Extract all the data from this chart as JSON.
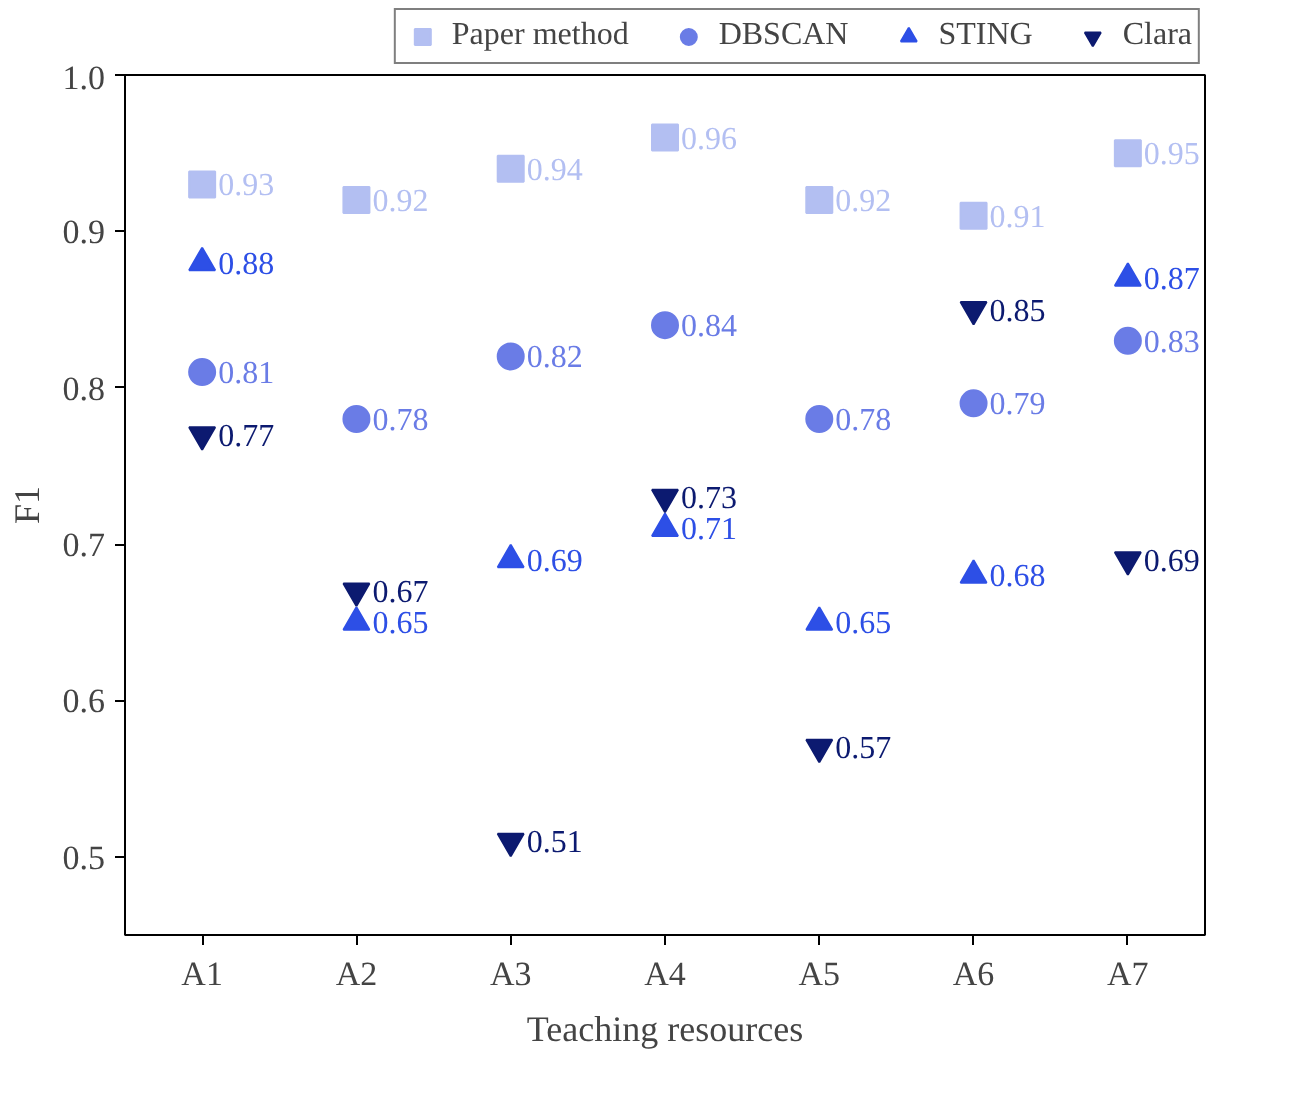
{
  "chart_data": {
    "type": "scatter",
    "xlabel": "Teaching resources",
    "ylabel": "F1",
    "categories": [
      "A1",
      "A2",
      "A3",
      "A4",
      "A5",
      "A6",
      "A7"
    ],
    "ylim": [
      0.45,
      1.0
    ],
    "yticks": [
      0.5,
      0.6,
      0.7,
      0.8,
      0.9,
      {
        "value": 1.0,
        "label": "1.0"
      }
    ],
    "series": [
      {
        "name": "Paper method",
        "color": "#b3bff2",
        "marker": "square",
        "values": [
          0.93,
          0.92,
          0.94,
          0.96,
          0.92,
          0.91,
          0.95
        ]
      },
      {
        "name": "DBSCAN",
        "color": "#6a7ce6",
        "marker": "circle",
        "values": [
          0.81,
          0.78,
          0.82,
          0.84,
          0.78,
          0.79,
          0.83
        ]
      },
      {
        "name": "STING",
        "color": "#2d4fe6",
        "marker": "triangle",
        "values": [
          0.88,
          0.65,
          0.69,
          0.71,
          0.65,
          0.68,
          0.87
        ]
      },
      {
        "name": "Clara",
        "color": "#0c1a70",
        "values": [
          0.77,
          0.67,
          0.51,
          0.73,
          0.57,
          0.85,
          0.69
        ]
      }
    ],
    "data_labels": true,
    "grid": false,
    "legend": "top"
  }
}
